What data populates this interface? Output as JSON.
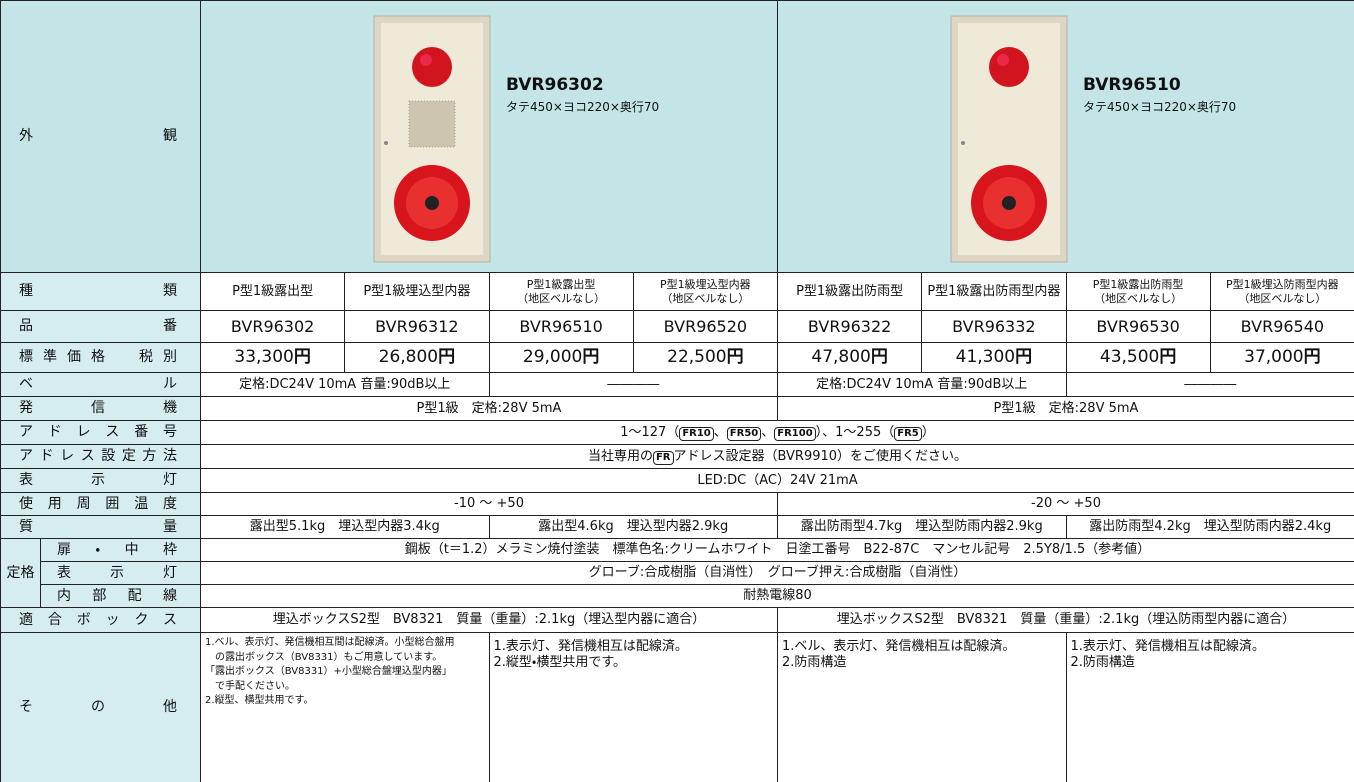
{
  "appearance": {
    "label": "外観",
    "products": [
      {
        "model": "BVR96302",
        "dimensions": "タテ450×ヨコ220×奥行70"
      },
      {
        "model": "BVR96510",
        "dimensions": "タテ450×ヨコ220×奥行70"
      }
    ]
  },
  "rating_group_label": "定格",
  "rows": [
    {
      "label": "種類",
      "cells": [
        "P型1級露出型",
        "P型1級埋込型内器",
        "P型1級露出型\n（地区ベルなし）",
        "P型1級埋込型内器\n（地区ベルなし）",
        "P型1級露出防雨型",
        "P型1級露出防雨型内器",
        "P型1級露出防雨型\n（地区ベルなし）",
        "P型1級埋込防雨型内器\n（地区ベルなし）"
      ]
    },
    {
      "label": "品番",
      "cells": [
        "BVR96302",
        "BVR96312",
        "BVR96510",
        "BVR96520",
        "BVR96322",
        "BVR96332",
        "BVR96530",
        "BVR96540"
      ]
    },
    {
      "label": "標準価格　税別",
      "cells": [
        {
          "amount": "33,300",
          "unit": "円"
        },
        {
          "amount": "26,800",
          "unit": "円"
        },
        {
          "amount": "29,000",
          "unit": "円"
        },
        {
          "amount": "22,500",
          "unit": "円"
        },
        {
          "amount": "47,800",
          "unit": "円"
        },
        {
          "amount": "41,300",
          "unit": "円"
        },
        {
          "amount": "43,500",
          "unit": "円"
        },
        {
          "amount": "37,000",
          "unit": "円"
        }
      ]
    },
    {
      "label": "ベル",
      "cells": [
        "定格:DC24V 10mA 音量:90dB以上",
        "――――",
        "定格:DC24V 10mA 音量:90dB以上",
        "――――"
      ]
    },
    {
      "label": "発信機",
      "cells": [
        "P型1級　定格:28V 5mA",
        "P型1級　定格:28V 5mA"
      ]
    },
    {
      "label": "アドレス番号",
      "cells": [
        [
          "1～127（",
          "FR10",
          "、",
          "FR50",
          "、",
          "FR100",
          "）、1～255（",
          "FR5",
          "）"
        ]
      ]
    },
    {
      "label": "アドレス設定方法",
      "cells": [
        [
          "当社専用の",
          "FR",
          "アドレス設定器（BVR9910）をご使用ください。"
        ]
      ]
    },
    {
      "label": "表示灯",
      "cells": [
        "LED:DC（AC）24V 21mA"
      ]
    },
    {
      "label": "使用周囲温度",
      "cells": [
        "-10 ～ +50",
        "-20 ～ +50"
      ]
    },
    {
      "label": "質量",
      "cells": [
        "露出型5.1kg　埋込型内器3.4kg",
        "露出型4.6kg　埋込型内器2.9kg",
        "露出防雨型4.7kg　埋込型防雨内器2.9kg",
        "露出防雨型4.2kg　埋込型防雨内器2.4kg"
      ]
    },
    {
      "label": "扉・中枠",
      "cells": [
        "鋼板（t＝1.2）メラミン焼付塗装　標準色名:クリームホワイト　日塗工番号　B22-87C　マンセル記号　2.5Y8/1.5（参考値）"
      ]
    },
    {
      "label": "表示灯",
      "cells": [
        "グローブ:合成樹脂（自消性）　グローブ押え:合成樹脂（自消性）"
      ]
    },
    {
      "label": "内部配線",
      "cells": [
        "耐熱電線80"
      ]
    },
    {
      "label": "適合ボックス",
      "cells": [
        "埋込ボックスS2型　BV8321　質量（重量）:2.1kg（埋込型内器に適合）",
        "埋込ボックスS2型　BV8321　質量（重量）:2.1kg（埋込防雨型内器に適合）"
      ]
    },
    {
      "label": "その他",
      "cells": [
        "1.ベル、表示灯、発信機相互間は配線済。小型総合盤用\n　の露出ボックス（BV8331）もご用意しています。\n「露出ボックス（BV8331）+小型総合盤埋込型内器」\n　で手配ください。\n2.縦型、横型共用です。",
        "1.表示灯、発信機相互は配線済。\n2.縦型・横型共用です。",
        "1.ベル、表示灯、発信機相互は配線済。\n2.防雨構造",
        "1.表示灯、発信機相互は配線済。\n2.防雨構造"
      ]
    }
  ]
}
